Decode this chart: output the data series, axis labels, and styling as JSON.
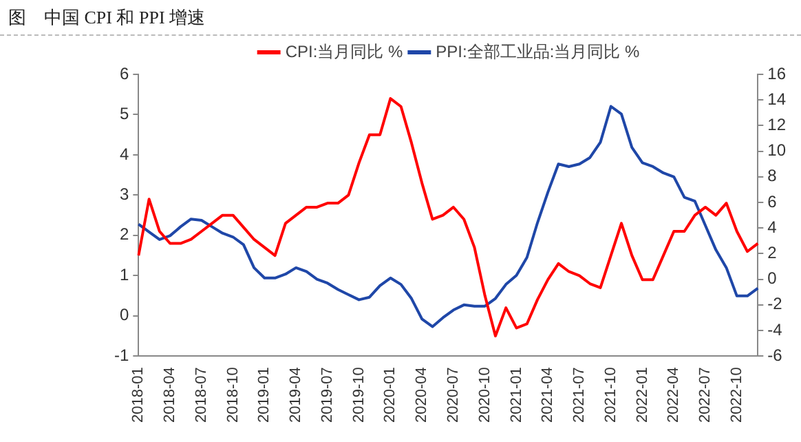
{
  "chart_data": {
    "type": "line",
    "title": "图　中国 CPI 和 PPI 增速",
    "categories": [
      "2018-01",
      null,
      null,
      "2018-04",
      null,
      null,
      "2018-07",
      null,
      null,
      "2018-10",
      null,
      null,
      "2019-01",
      null,
      null,
      "2019-04",
      null,
      null,
      "2019-07",
      null,
      null,
      "2019-10",
      null,
      null,
      "2020-01",
      null,
      null,
      "2020-04",
      null,
      null,
      "2020-07",
      null,
      null,
      "2020-10",
      null,
      null,
      "2021-01",
      null,
      null,
      "2021-04",
      null,
      null,
      "2021-07",
      null,
      null,
      "2021-10",
      null,
      null,
      "2022-01",
      null,
      null,
      "2022-04",
      null,
      null,
      "2022-07",
      null,
      null,
      "2022-10",
      null,
      null
    ],
    "series": [
      {
        "name": "CPI:当月同比 %",
        "color": "#ff0000",
        "values": [
          1.5,
          2.9,
          2.1,
          1.8,
          1.8,
          1.9,
          2.1,
          2.3,
          2.5,
          2.5,
          2.2,
          1.9,
          1.7,
          1.5,
          2.3,
          2.5,
          2.7,
          2.7,
          2.8,
          2.8,
          3.0,
          3.8,
          4.5,
          4.5,
          5.4,
          5.2,
          4.3,
          3.3,
          2.4,
          2.5,
          2.7,
          2.4,
          1.7,
          0.5,
          -0.5,
          0.2,
          -0.3,
          -0.2,
          0.4,
          0.9,
          1.3,
          1.1,
          1.0,
          0.8,
          0.7,
          1.5,
          2.3,
          1.5,
          0.9,
          0.9,
          1.5,
          2.1,
          2.1,
          2.5,
          2.7,
          2.5,
          2.8,
          2.1,
          1.6,
          1.8
        ]
      },
      {
        "name": "PPI:全部工业品:当月同比 %",
        "color": "#1f47a8",
        "axis": "y2",
        "values": [
          4.3,
          3.7,
          3.1,
          3.4,
          4.1,
          4.7,
          4.6,
          4.1,
          3.6,
          3.3,
          2.7,
          0.9,
          0.1,
          0.1,
          0.4,
          0.9,
          0.6,
          0.0,
          -0.3,
          -0.8,
          -1.2,
          -1.6,
          -1.4,
          -0.5,
          0.1,
          -0.4,
          -1.5,
          -3.1,
          -3.7,
          -3.0,
          -2.4,
          -2.0,
          -2.1,
          -2.1,
          -1.5,
          -0.4,
          0.3,
          1.7,
          4.4,
          6.8,
          9.0,
          8.8,
          9.0,
          9.5,
          10.7,
          13.5,
          12.9,
          10.3,
          9.1,
          8.8,
          8.3,
          8.0,
          6.4,
          6.1,
          4.2,
          2.3,
          0.9,
          -1.3,
          -1.3,
          -0.7
        ]
      }
    ],
    "ylim": [
      -1,
      6
    ],
    "yticks": [
      -1,
      0,
      1,
      2,
      3,
      4,
      5,
      6
    ],
    "y2lim": [
      -6,
      16
    ],
    "y2ticks": [
      -6,
      -4,
      -2,
      0,
      2,
      4,
      6,
      8,
      10,
      12,
      14,
      16
    ],
    "grid": false,
    "legend": "top",
    "marker": "none",
    "line_style": "solid"
  }
}
